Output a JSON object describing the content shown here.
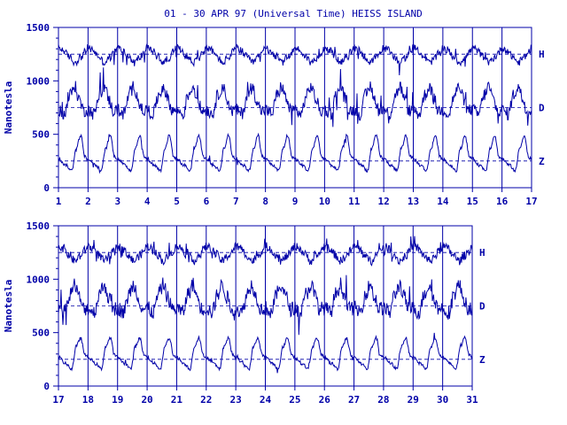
{
  "title": "01 - 30 APR 97 (Universal Time) HEISS ISLAND",
  "colors": {
    "trace": "#0000a8",
    "text": "#0000a8",
    "background": "#ffffff"
  },
  "chart_data": [
    {
      "type": "line",
      "panel": "top",
      "ylabel": "Nanotesla",
      "ylim": [
        0,
        1500
      ],
      "yticks": [
        "0",
        "500",
        "1000",
        "1500"
      ],
      "xlim": [
        1,
        17
      ],
      "xticks": [
        "1",
        "2",
        "3",
        "4",
        "5",
        "6",
        "7",
        "8",
        "9",
        "10",
        "11",
        "12",
        "13",
        "14",
        "15",
        "16",
        "17"
      ],
      "baselines": [
        1250,
        750,
        250
      ],
      "series": [
        {
          "name": "H",
          "baseline": 1250,
          "daily": [
            [
              0,
              60
            ],
            [
              0.15,
              40
            ],
            [
              0.35,
              -20
            ],
            [
              0.55,
              -80
            ],
            [
              0.75,
              -30
            ],
            [
              0.9,
              20
            ]
          ],
          "noise": 35
        },
        {
          "name": "D",
          "baseline": 750,
          "daily": [
            [
              0,
              -20
            ],
            [
              0.2,
              -60
            ],
            [
              0.4,
              120
            ],
            [
              0.55,
              200
            ],
            [
              0.7,
              80
            ],
            [
              0.85,
              -30
            ]
          ],
          "noise": 60
        },
        {
          "name": "Z",
          "baseline": 250,
          "daily": [
            [
              0,
              20
            ],
            [
              0.25,
              -40
            ],
            [
              0.45,
              -90
            ],
            [
              0.6,
              120
            ],
            [
              0.75,
              240
            ],
            [
              0.9,
              40
            ]
          ],
          "noise": 15
        }
      ]
    },
    {
      "type": "line",
      "panel": "bottom",
      "ylabel": "Nanotesla",
      "ylim": [
        0,
        1500
      ],
      "yticks": [
        "0",
        "500",
        "1000",
        "1500"
      ],
      "xlim": [
        17,
        31
      ],
      "xticks": [
        "17",
        "18",
        "19",
        "20",
        "21",
        "22",
        "23",
        "24",
        "25",
        "26",
        "27",
        "28",
        "29",
        "30",
        "31"
      ],
      "baselines": [
        1250,
        750,
        250
      ],
      "series": [
        {
          "name": "H",
          "baseline": 1250,
          "daily": [
            [
              0,
              60
            ],
            [
              0.15,
              40
            ],
            [
              0.35,
              -20
            ],
            [
              0.55,
              -80
            ],
            [
              0.75,
              -30
            ],
            [
              0.9,
              20
            ]
          ],
          "noise": 40
        },
        {
          "name": "D",
          "baseline": 750,
          "daily": [
            [
              0,
              -20
            ],
            [
              0.2,
              -60
            ],
            [
              0.4,
              120
            ],
            [
              0.55,
              200
            ],
            [
              0.7,
              80
            ],
            [
              0.85,
              -30
            ]
          ],
          "noise": 70
        },
        {
          "name": "Z",
          "baseline": 250,
          "daily": [
            [
              0,
              20
            ],
            [
              0.25,
              -40
            ],
            [
              0.45,
              -90
            ],
            [
              0.6,
              120
            ],
            [
              0.75,
              200
            ],
            [
              0.9,
              40
            ]
          ],
          "noise": 15
        }
      ]
    }
  ]
}
